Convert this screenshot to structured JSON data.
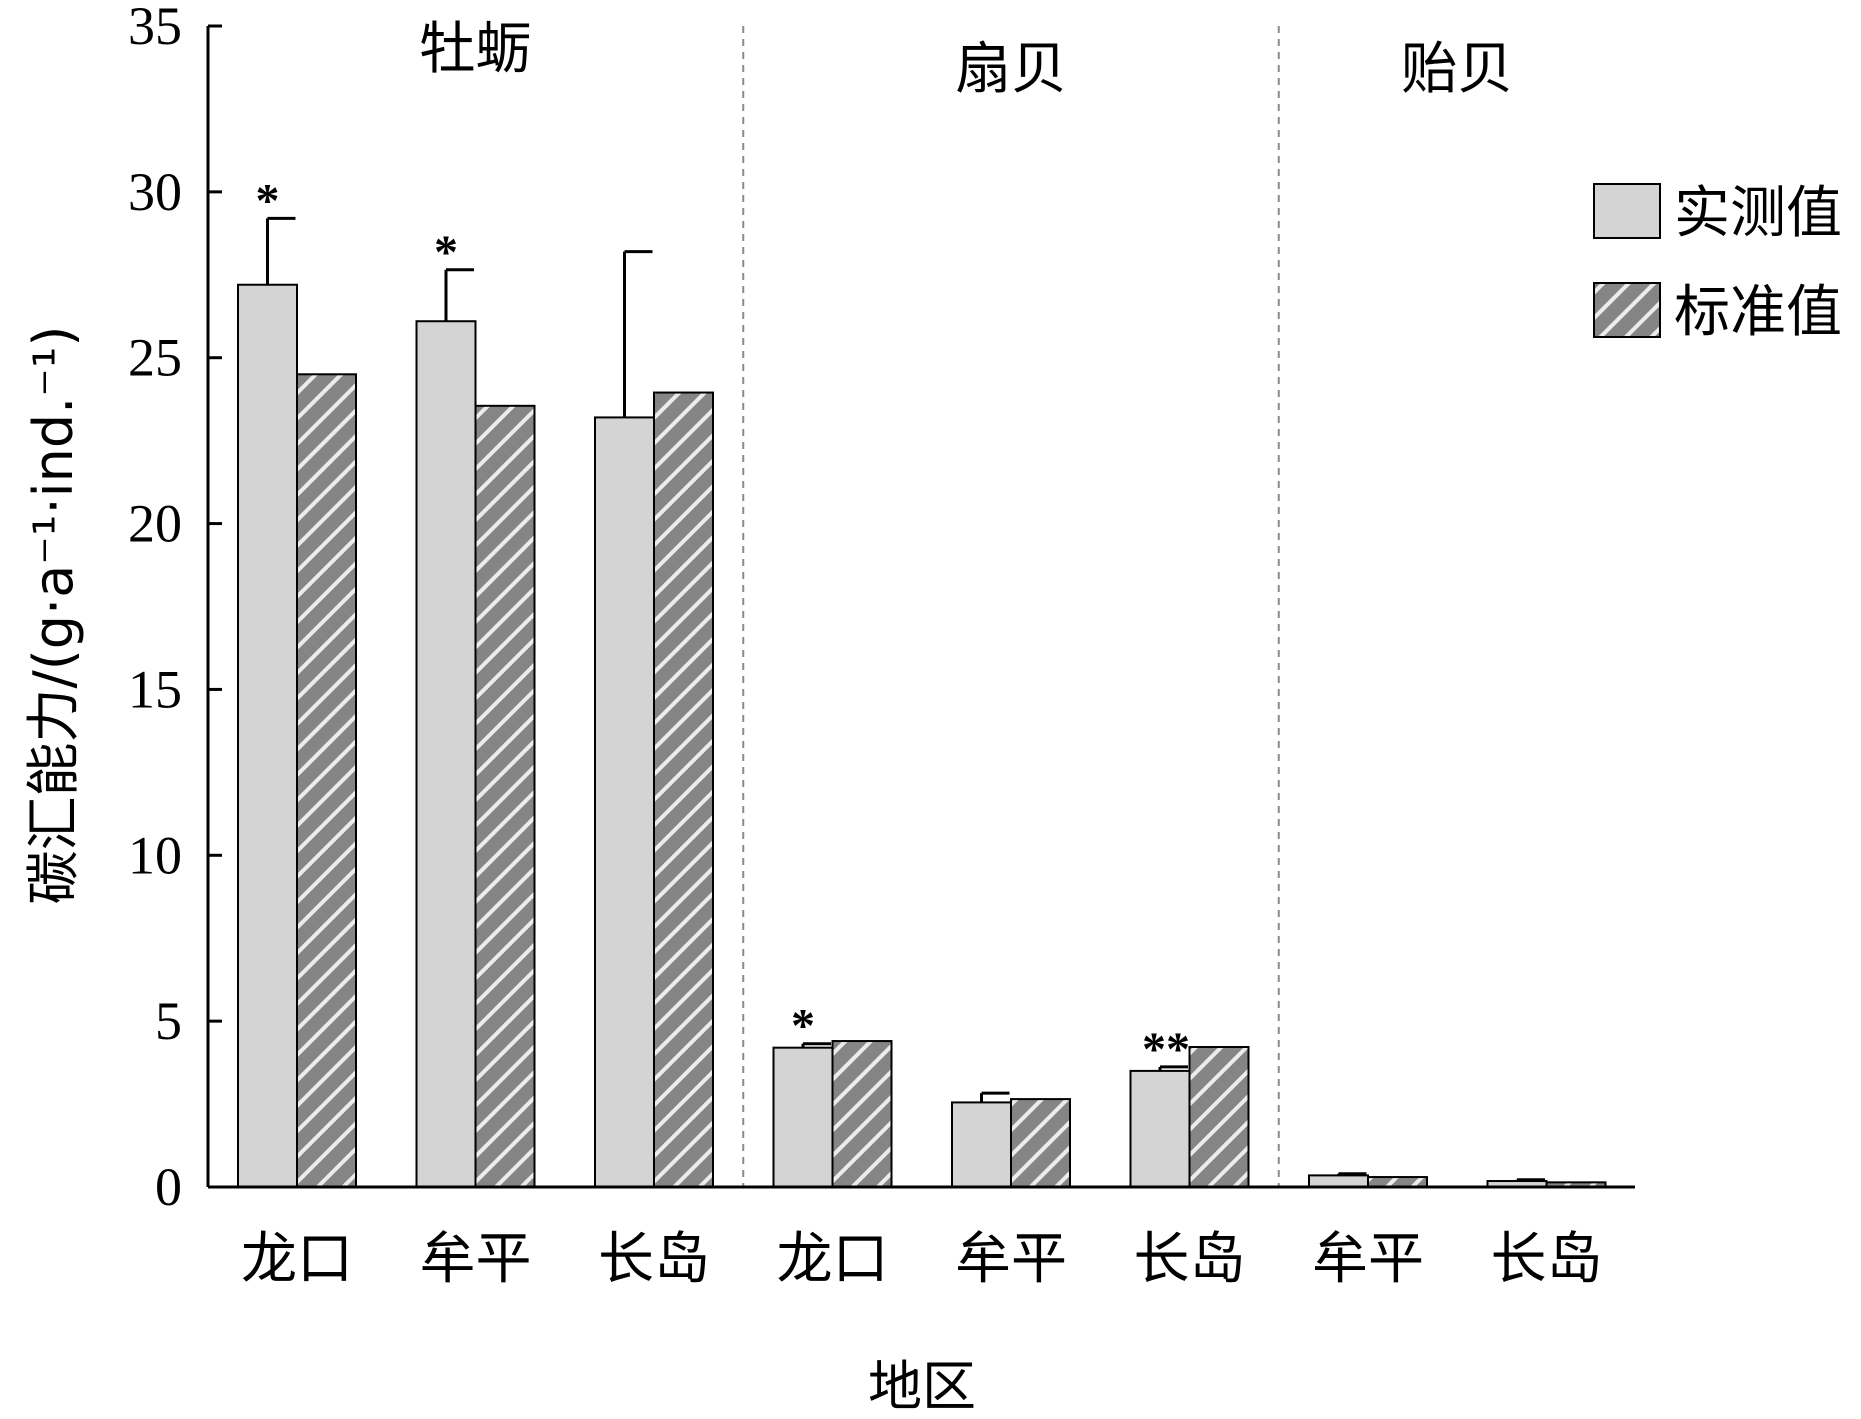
{
  "chart_data": {
    "type": "bar",
    "categories": [
      "龙口",
      "牟平",
      "长岛",
      "龙口",
      "牟平",
      "长岛",
      "牟平",
      "长岛"
    ],
    "groups": [
      {
        "label": "牡蛎",
        "category_indices": [
          0,
          1,
          2
        ]
      },
      {
        "label": "扇贝",
        "category_indices": [
          3,
          4,
          5
        ]
      },
      {
        "label": "贻贝",
        "category_indices": [
          6,
          7
        ]
      }
    ],
    "series": [
      {
        "name": "实测值",
        "values": [
          27.2,
          26.1,
          23.2,
          4.2,
          2.55,
          3.5,
          0.35,
          0.18
        ],
        "errors": [
          2.0,
          1.55,
          5.0,
          0.12,
          0.28,
          0.12,
          0.05,
          0.04
        ],
        "color": "#d4d4d4",
        "pattern": "solid"
      },
      {
        "name": "标准值",
        "values": [
          24.5,
          23.55,
          23.95,
          4.4,
          2.65,
          4.22,
          0.3,
          0.14
        ],
        "color": "#888888",
        "pattern": "hatch"
      }
    ],
    "annotations": [
      "*",
      "*",
      "",
      "*",
      "",
      "**",
      "",
      ""
    ],
    "xlabel": "地区",
    "ylabel": "碳汇能力/(g·a⁻¹·ind.⁻¹)",
    "ylim": [
      0,
      35
    ],
    "yticks": [
      0,
      5,
      10,
      15,
      20,
      25,
      30,
      35
    ],
    "grid": false,
    "legend_position": "top-right"
  }
}
